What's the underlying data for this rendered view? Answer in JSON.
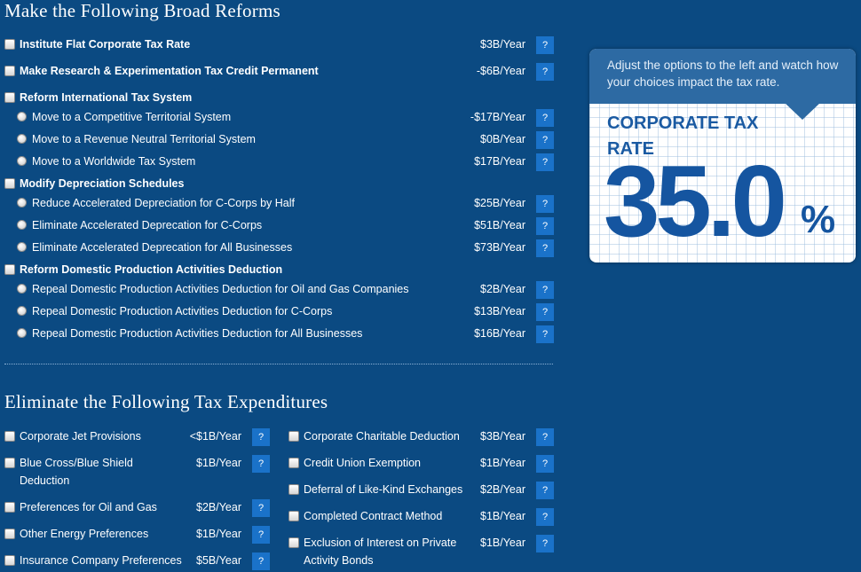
{
  "broad": {
    "title": "Make the Following Broad Reforms",
    "items": [
      {
        "type": "checkbox",
        "bold": true,
        "label": "Institute Flat Corporate Tax Rate",
        "cost": "$3B/Year",
        "help": true
      },
      {
        "type": "checkbox",
        "bold": true,
        "label": "Make Research & Experimentation Tax Credit Permanent",
        "cost": "-$6B/Year",
        "help": true
      },
      {
        "type": "checkbox",
        "bold": true,
        "label": "Reform International Tax System",
        "cost": "",
        "help": false
      },
      {
        "type": "radio",
        "bold": false,
        "label": "Move to a Competitive Territorial System",
        "cost": "-$17B/Year",
        "help": true
      },
      {
        "type": "radio",
        "bold": false,
        "label": "Move to a Revenue Neutral Territorial System",
        "cost": "$0B/Year",
        "help": true
      },
      {
        "type": "radio",
        "bold": false,
        "label": "Move to a Worldwide Tax System",
        "cost": "$17B/Year",
        "help": true
      },
      {
        "type": "checkbox",
        "bold": true,
        "label": "Modify Depreciation Schedules",
        "cost": "",
        "help": false
      },
      {
        "type": "radio",
        "bold": false,
        "label": "Reduce Accelerated Depreciation for C-Corps by Half",
        "cost": "$25B/Year",
        "help": true
      },
      {
        "type": "radio",
        "bold": false,
        "label": "Eliminate Accelerated Deprecation for C-Corps",
        "cost": "$51B/Year",
        "help": true
      },
      {
        "type": "radio",
        "bold": false,
        "label": "Eliminate Accelerated Deprecation for All Businesses",
        "cost": "$73B/Year",
        "help": true
      },
      {
        "type": "checkbox",
        "bold": true,
        "label": "Reform Domestic Production Activities Deduction",
        "cost": "",
        "help": false
      },
      {
        "type": "radio",
        "bold": false,
        "label": "Repeal Domestic Production Activities Deduction for Oil and Gas Companies",
        "cost": "$2B/Year",
        "help": true
      },
      {
        "type": "radio",
        "bold": false,
        "label": "Repeal Domestic Production Activities Deduction for C-Corps",
        "cost": "$13B/Year",
        "help": true
      },
      {
        "type": "radio",
        "bold": false,
        "label": "Repeal Domestic Production Activities Deduction for All Businesses",
        "cost": "$16B/Year",
        "help": true
      }
    ]
  },
  "expenditures": {
    "title": "Eliminate the Following Tax Expenditures",
    "left": [
      {
        "label": "Corporate Jet Provisions",
        "cost": "<$1B/Year"
      },
      {
        "label": "Blue Cross/Blue Shield",
        "label2": "Deduction",
        "cost": "$1B/Year"
      },
      {
        "label": "Preferences for Oil and Gas",
        "cost": "$2B/Year"
      },
      {
        "label": "Other Energy Preferences",
        "cost": "$1B/Year"
      },
      {
        "label": "Insurance Company Preferences",
        "cost": "$5B/Year"
      }
    ],
    "right": [
      {
        "label": "Corporate Charitable Deduction",
        "cost": "$3B/Year"
      },
      {
        "label": "Credit Union Exemption",
        "cost": "$1B/Year"
      },
      {
        "label": "Deferral of Like-Kind Exchanges",
        "cost": "$2B/Year"
      },
      {
        "label": "Completed Contract Method",
        "cost": "$1B/Year"
      },
      {
        "label": "Exclusion of Interest on Private",
        "label2": "Activity Bonds",
        "cost": "$1B/Year"
      }
    ]
  },
  "help_label": "?",
  "panel": {
    "hint": "Adjust the options to the left and watch how your choices impact the tax rate.",
    "rate_label": "CORPORATE TAX RATE",
    "rate_value": "35.0",
    "rate_unit": "%"
  },
  "colors": {
    "background": "#0b4a82",
    "help_button": "#1a72c9",
    "rate_text": "#1555a0"
  }
}
